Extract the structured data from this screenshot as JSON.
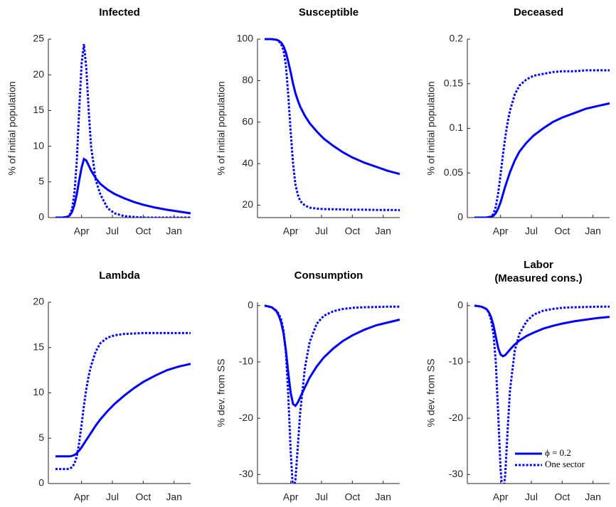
{
  "chart_data": [
    {
      "type": "line",
      "title": "Infected",
      "ylabel": "% of initial population",
      "x": [
        3,
        6,
        8,
        9,
        10,
        11,
        12,
        13,
        14,
        15,
        16,
        17,
        18,
        20,
        22,
        25,
        28,
        32,
        36,
        40,
        45,
        50,
        55,
        60
      ],
      "xlim": [
        0,
        60
      ],
      "xticks": [
        {
          "value": 14,
          "label": "Apr"
        },
        {
          "value": 27,
          "label": "Jul"
        },
        {
          "value": 40,
          "label": "Oct"
        },
        {
          "value": 53,
          "label": "Jan"
        }
      ],
      "ylim": [
        0,
        25
      ],
      "yticks": [
        0,
        5,
        10,
        15,
        20,
        25
      ],
      "series": [
        {
          "color": "#0000ff",
          "style": "solid",
          "values": [
            0,
            0,
            0.1,
            0.3,
            0.8,
            1.8,
            3.3,
            5.2,
            7.0,
            8.2,
            8.0,
            7.3,
            6.6,
            5.5,
            4.7,
            3.9,
            3.3,
            2.7,
            2.2,
            1.8,
            1.4,
            1.1,
            0.85,
            0.6
          ]
        },
        {
          "color": "#0000ff",
          "style": "dotted",
          "values": [
            0,
            0,
            0.1,
            0.4,
            1.2,
            3.5,
            8,
            15,
            21.5,
            24.3,
            21,
            15,
            10,
            5.2,
            3.2,
            1.3,
            0.6,
            0.2,
            0.1,
            0,
            0,
            0,
            0,
            0
          ]
        }
      ]
    },
    {
      "type": "line",
      "title": "Susceptible",
      "ylabel": "% of initial population",
      "x": [
        3,
        6,
        8,
        9,
        10,
        11,
        12,
        13,
        14,
        15,
        16,
        17,
        18,
        20,
        22,
        25,
        28,
        32,
        36,
        40,
        45,
        50,
        55,
        60
      ],
      "xlim": [
        0,
        60
      ],
      "xticks": [
        {
          "value": 14,
          "label": "Apr"
        },
        {
          "value": 27,
          "label": "Jul"
        },
        {
          "value": 40,
          "label": "Oct"
        },
        {
          "value": 53,
          "label": "Jan"
        }
      ],
      "ylim": [
        14,
        100
      ],
      "yticks": [
        20,
        40,
        60,
        80,
        100
      ],
      "series": [
        {
          "color": "#0000ff",
          "style": "solid",
          "values": [
            100,
            100,
            99.7,
            99.2,
            98.3,
            96.5,
            93.5,
            89,
            84,
            78.5,
            74,
            70.5,
            67.5,
            63,
            59.5,
            55.5,
            52,
            48.5,
            45.5,
            43,
            40.5,
            38.5,
            36.5,
            35
          ]
        },
        {
          "color": "#0000ff",
          "style": "dotted",
          "values": [
            100,
            100,
            99.7,
            99,
            97.5,
            94.5,
            87,
            73,
            55,
            40,
            30,
            25,
            22,
            19.8,
            18.8,
            18.3,
            18.1,
            18,
            17.9,
            17.8,
            17.8,
            17.7,
            17.7,
            17.6
          ]
        }
      ]
    },
    {
      "type": "line",
      "title": "Deceased",
      "ylabel": "% of initial population",
      "x": [
        3,
        6,
        8,
        9,
        10,
        11,
        12,
        13,
        14,
        15,
        16,
        17,
        18,
        20,
        22,
        25,
        28,
        32,
        36,
        40,
        45,
        50,
        55,
        60
      ],
      "xlim": [
        0,
        60
      ],
      "xticks": [
        {
          "value": 14,
          "label": "Apr"
        },
        {
          "value": 27,
          "label": "Jul"
        },
        {
          "value": 40,
          "label": "Oct"
        },
        {
          "value": 53,
          "label": "Jan"
        }
      ],
      "ylim": [
        0,
        0.2
      ],
      "yticks": [
        0,
        0.05,
        0.1,
        0.15,
        0.2
      ],
      "series": [
        {
          "color": "#0000ff",
          "style": "solid",
          "values": [
            0,
            0,
            0,
            0.0005,
            0.001,
            0.002,
            0.005,
            0.01,
            0.017,
            0.026,
            0.035,
            0.043,
            0.051,
            0.064,
            0.074,
            0.084,
            0.092,
            0.1,
            0.107,
            0.112,
            0.117,
            0.122,
            0.125,
            0.128
          ]
        },
        {
          "color": "#0000ff",
          "style": "dotted",
          "values": [
            0,
            0,
            0,
            0.0005,
            0.001,
            0.004,
            0.012,
            0.027,
            0.048,
            0.07,
            0.09,
            0.107,
            0.12,
            0.138,
            0.148,
            0.155,
            0.159,
            0.161,
            0.163,
            0.164,
            0.164,
            0.165,
            0.165,
            0.165
          ]
        }
      ]
    },
    {
      "type": "line",
      "title": "Lambda",
      "x": [
        3,
        6,
        8,
        9,
        10,
        11,
        12,
        13,
        14,
        15,
        16,
        17,
        18,
        20,
        22,
        25,
        28,
        32,
        36,
        40,
        45,
        50,
        55,
        60
      ],
      "xlim": [
        0,
        60
      ],
      "xticks": [
        {
          "value": 14,
          "label": "Apr"
        },
        {
          "value": 27,
          "label": "Jul"
        },
        {
          "value": 40,
          "label": "Oct"
        },
        {
          "value": 53,
          "label": "Jan"
        }
      ],
      "ylim": [
        0,
        20
      ],
      "yticks": [
        0,
        5,
        10,
        15,
        20
      ],
      "series": [
        {
          "color": "#0000ff",
          "style": "solid",
          "values": [
            3,
            3,
            3,
            3,
            3.05,
            3.15,
            3.35,
            3.65,
            4.0,
            4.4,
            4.8,
            5.2,
            5.6,
            6.4,
            7.1,
            8.0,
            8.8,
            9.7,
            10.5,
            11.2,
            11.9,
            12.5,
            12.9,
            13.2
          ]
        },
        {
          "color": "#0000ff",
          "style": "dotted",
          "values": [
            1.6,
            1.6,
            1.6,
            1.65,
            1.8,
            2.2,
            3,
            4.5,
            6.5,
            8.6,
            10.4,
            11.9,
            13,
            14.6,
            15.5,
            16.1,
            16.35,
            16.5,
            16.55,
            16.6,
            16.6,
            16.6,
            16.6,
            16.6
          ]
        }
      ]
    },
    {
      "type": "line",
      "title": "Consumption",
      "ylabel": "% dev. from SS",
      "x": [
        3,
        6,
        8,
        9,
        10,
        11,
        12,
        13,
        14,
        15,
        16,
        17,
        18,
        20,
        22,
        25,
        28,
        32,
        36,
        40,
        45,
        50,
        55,
        60
      ],
      "xlim": [
        0,
        60
      ],
      "xticks": [
        {
          "value": 14,
          "label": "Apr"
        },
        {
          "value": 27,
          "label": "Jul"
        },
        {
          "value": 40,
          "label": "Oct"
        },
        {
          "value": 53,
          "label": "Jan"
        }
      ],
      "ylim": [
        -31.6,
        0.6
      ],
      "yticks": [
        -30,
        -20,
        -10,
        0
      ],
      "series": [
        {
          "color": "#0000ff",
          "style": "solid",
          "values": [
            0,
            -0.3,
            -1,
            -1.8,
            -3,
            -5,
            -8,
            -12,
            -15.5,
            -17.5,
            -17.8,
            -17.2,
            -16.3,
            -14.5,
            -12.8,
            -10.8,
            -9.2,
            -7.6,
            -6.3,
            -5.3,
            -4.3,
            -3.5,
            -3,
            -2.5
          ]
        },
        {
          "color": "#0000ff",
          "style": "dotted",
          "values": [
            0,
            -0.3,
            -0.9,
            -1.5,
            -2.5,
            -4.5,
            -8.5,
            -16,
            -26,
            -33,
            -31,
            -25,
            -19,
            -11,
            -6.5,
            -3.2,
            -1.8,
            -1,
            -0.6,
            -0.4,
            -0.3,
            -0.25,
            -0.2,
            -0.2
          ]
        }
      ]
    },
    {
      "type": "line",
      "title": "Labor",
      "subtitle": "(Measured cons.)",
      "ylabel": "% dev. from SS",
      "x": [
        3,
        6,
        8,
        9,
        10,
        11,
        12,
        13,
        14,
        15,
        16,
        17,
        18,
        20,
        22,
        25,
        28,
        32,
        36,
        40,
        45,
        50,
        55,
        60
      ],
      "xlim": [
        0,
        60
      ],
      "xticks": [
        {
          "value": 14,
          "label": "Apr"
        },
        {
          "value": 27,
          "label": "Jul"
        },
        {
          "value": 40,
          "label": "Oct"
        },
        {
          "value": 53,
          "label": "Jan"
        }
      ],
      "ylim": [
        -31.6,
        0.6
      ],
      "yticks": [
        -30,
        -20,
        -10,
        0
      ],
      "legend": "lower right",
      "series": [
        {
          "name": "ϕ = 0.2",
          "color": "#0000ff",
          "style": "solid",
          "values": [
            0,
            -0.2,
            -0.6,
            -1.1,
            -2,
            -3.5,
            -5.5,
            -7.5,
            -8.7,
            -9,
            -8.8,
            -8.3,
            -7.8,
            -6.9,
            -6.2,
            -5.4,
            -4.8,
            -4.1,
            -3.6,
            -3.2,
            -2.8,
            -2.5,
            -2.2,
            -2
          ]
        },
        {
          "name": "One sector",
          "color": "#0000ff",
          "style": "dotted",
          "values": [
            0,
            -0.2,
            -0.6,
            -1.2,
            -2.5,
            -5,
            -10,
            -19,
            -29,
            -34,
            -30,
            -22,
            -15,
            -8,
            -5,
            -2.8,
            -1.6,
            -0.9,
            -0.6,
            -0.4,
            -0.3,
            -0.25,
            -0.2,
            -0.2
          ]
        }
      ]
    }
  ]
}
